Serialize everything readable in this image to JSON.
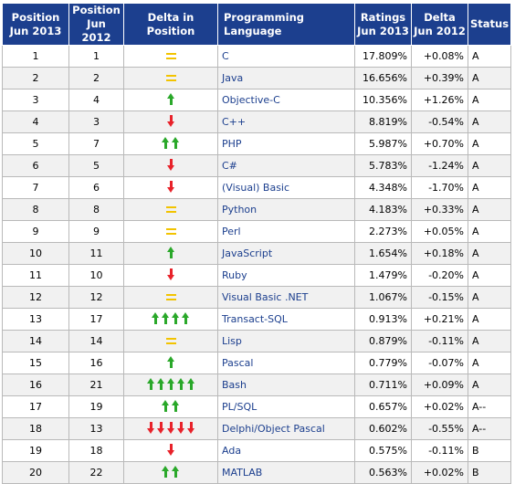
{
  "header": {
    "pos_2013": "Position Jun 2013",
    "pos_2012": "Position Jun 2012",
    "delta_pos": "Delta in Position",
    "language": "Programming Language",
    "ratings": "Ratings Jun 2013",
    "delta": "Delta Jun 2012",
    "status": "Status"
  },
  "delta_icons": {
    "same": "equals-icon",
    "up": "up-arrow-icon",
    "down": "down-arrow-icon"
  },
  "colors": {
    "header_bg": "#1c3f8e",
    "language_link": "#1c3f8e",
    "up_arrow": "#2aa82a",
    "down_arrow": "#e8222a",
    "equals": "#f2c300"
  },
  "rows": [
    {
      "pos2013": "1",
      "pos2012": "1",
      "dir": "same",
      "count": 1,
      "lang": "C",
      "rating": "17.809%",
      "delta": "+0.08%",
      "status": "A"
    },
    {
      "pos2013": "2",
      "pos2012": "2",
      "dir": "same",
      "count": 1,
      "lang": "Java",
      "rating": "16.656%",
      "delta": "+0.39%",
      "status": "A"
    },
    {
      "pos2013": "3",
      "pos2012": "4",
      "dir": "up",
      "count": 1,
      "lang": "Objective-C",
      "rating": "10.356%",
      "delta": "+1.26%",
      "status": "A"
    },
    {
      "pos2013": "4",
      "pos2012": "3",
      "dir": "down",
      "count": 1,
      "lang": "C++",
      "rating": "8.819%",
      "delta": "-0.54%",
      "status": "A"
    },
    {
      "pos2013": "5",
      "pos2012": "7",
      "dir": "up",
      "count": 2,
      "lang": "PHP",
      "rating": "5.987%",
      "delta": "+0.70%",
      "status": "A"
    },
    {
      "pos2013": "6",
      "pos2012": "5",
      "dir": "down",
      "count": 1,
      "lang": "C#",
      "rating": "5.783%",
      "delta": "-1.24%",
      "status": "A"
    },
    {
      "pos2013": "7",
      "pos2012": "6",
      "dir": "down",
      "count": 1,
      "lang": "(Visual) Basic",
      "rating": "4.348%",
      "delta": "-1.70%",
      "status": "A"
    },
    {
      "pos2013": "8",
      "pos2012": "8",
      "dir": "same",
      "count": 1,
      "lang": "Python",
      "rating": "4.183%",
      "delta": "+0.33%",
      "status": "A"
    },
    {
      "pos2013": "9",
      "pos2012": "9",
      "dir": "same",
      "count": 1,
      "lang": "Perl",
      "rating": "2.273%",
      "delta": "+0.05%",
      "status": "A"
    },
    {
      "pos2013": "10",
      "pos2012": "11",
      "dir": "up",
      "count": 1,
      "lang": "JavaScript",
      "rating": "1.654%",
      "delta": "+0.18%",
      "status": "A"
    },
    {
      "pos2013": "11",
      "pos2012": "10",
      "dir": "down",
      "count": 1,
      "lang": "Ruby",
      "rating": "1.479%",
      "delta": "-0.20%",
      "status": "A"
    },
    {
      "pos2013": "12",
      "pos2012": "12",
      "dir": "same",
      "count": 1,
      "lang": "Visual Basic .NET",
      "rating": "1.067%",
      "delta": "-0.15%",
      "status": "A"
    },
    {
      "pos2013": "13",
      "pos2012": "17",
      "dir": "up",
      "count": 4,
      "lang": "Transact-SQL",
      "rating": "0.913%",
      "delta": "+0.21%",
      "status": "A"
    },
    {
      "pos2013": "14",
      "pos2012": "14",
      "dir": "same",
      "count": 1,
      "lang": "Lisp",
      "rating": "0.879%",
      "delta": "-0.11%",
      "status": "A"
    },
    {
      "pos2013": "15",
      "pos2012": "16",
      "dir": "up",
      "count": 1,
      "lang": "Pascal",
      "rating": "0.779%",
      "delta": "-0.07%",
      "status": "A"
    },
    {
      "pos2013": "16",
      "pos2012": "21",
      "dir": "up",
      "count": 5,
      "lang": "Bash",
      "rating": "0.711%",
      "delta": "+0.09%",
      "status": "A"
    },
    {
      "pos2013": "17",
      "pos2012": "19",
      "dir": "up",
      "count": 2,
      "lang": "PL/SQL",
      "rating": "0.657%",
      "delta": "+0.02%",
      "status": "A--"
    },
    {
      "pos2013": "18",
      "pos2012": "13",
      "dir": "down",
      "count": 5,
      "lang": "Delphi/Object Pascal",
      "rating": "0.602%",
      "delta": "-0.55%",
      "status": "A--"
    },
    {
      "pos2013": "19",
      "pos2012": "18",
      "dir": "down",
      "count": 1,
      "lang": "Ada",
      "rating": "0.575%",
      "delta": "-0.11%",
      "status": "B"
    },
    {
      "pos2013": "20",
      "pos2012": "22",
      "dir": "up",
      "count": 2,
      "lang": "MATLAB",
      "rating": "0.563%",
      "delta": "+0.02%",
      "status": "B"
    }
  ]
}
